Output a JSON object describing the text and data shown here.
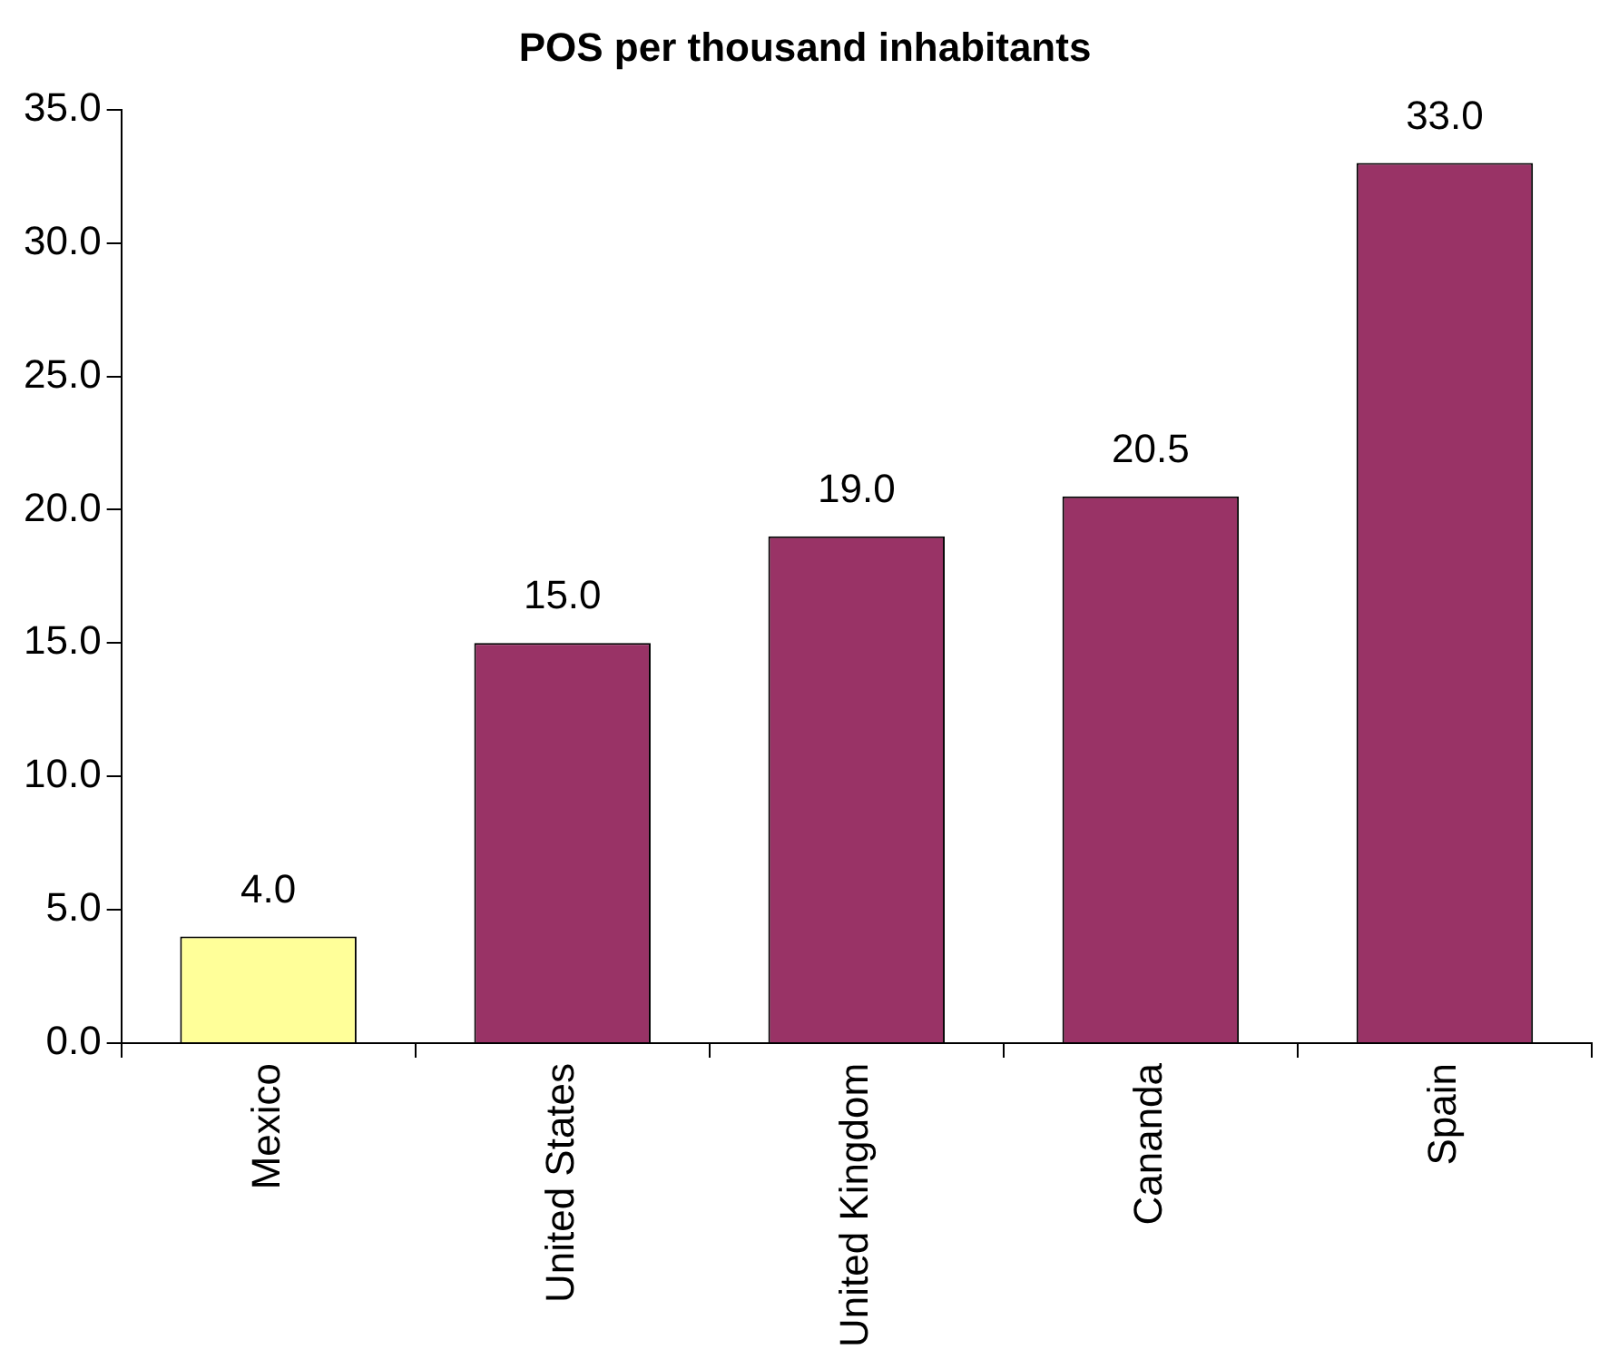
{
  "chart_data": {
    "type": "bar",
    "title": "POS per thousand inhabitants",
    "categories": [
      "Mexico",
      "United States",
      "United Kingdom",
      "Cananda",
      "Spain"
    ],
    "values": [
      4.0,
      15.0,
      19.0,
      20.5,
      33.0
    ],
    "colors": [
      "#ffff99",
      "#993366",
      "#993366",
      "#993366",
      "#993366"
    ],
    "value_labels": [
      "4.0",
      "15.0",
      "19.0",
      "20.5",
      "33.0"
    ],
    "ylim": [
      0,
      35
    ],
    "yticks": [
      {
        "value": 0,
        "label": "0.0"
      },
      {
        "value": 5,
        "label": "5.0"
      },
      {
        "value": 10,
        "label": "10.0"
      },
      {
        "value": 15,
        "label": "15.0"
      },
      {
        "value": 20,
        "label": "20.0"
      },
      {
        "value": 25,
        "label": "25.0"
      },
      {
        "value": 30,
        "label": "30.0"
      },
      {
        "value": 35,
        "label": "35.0"
      }
    ],
    "grid": false,
    "legend": false
  }
}
